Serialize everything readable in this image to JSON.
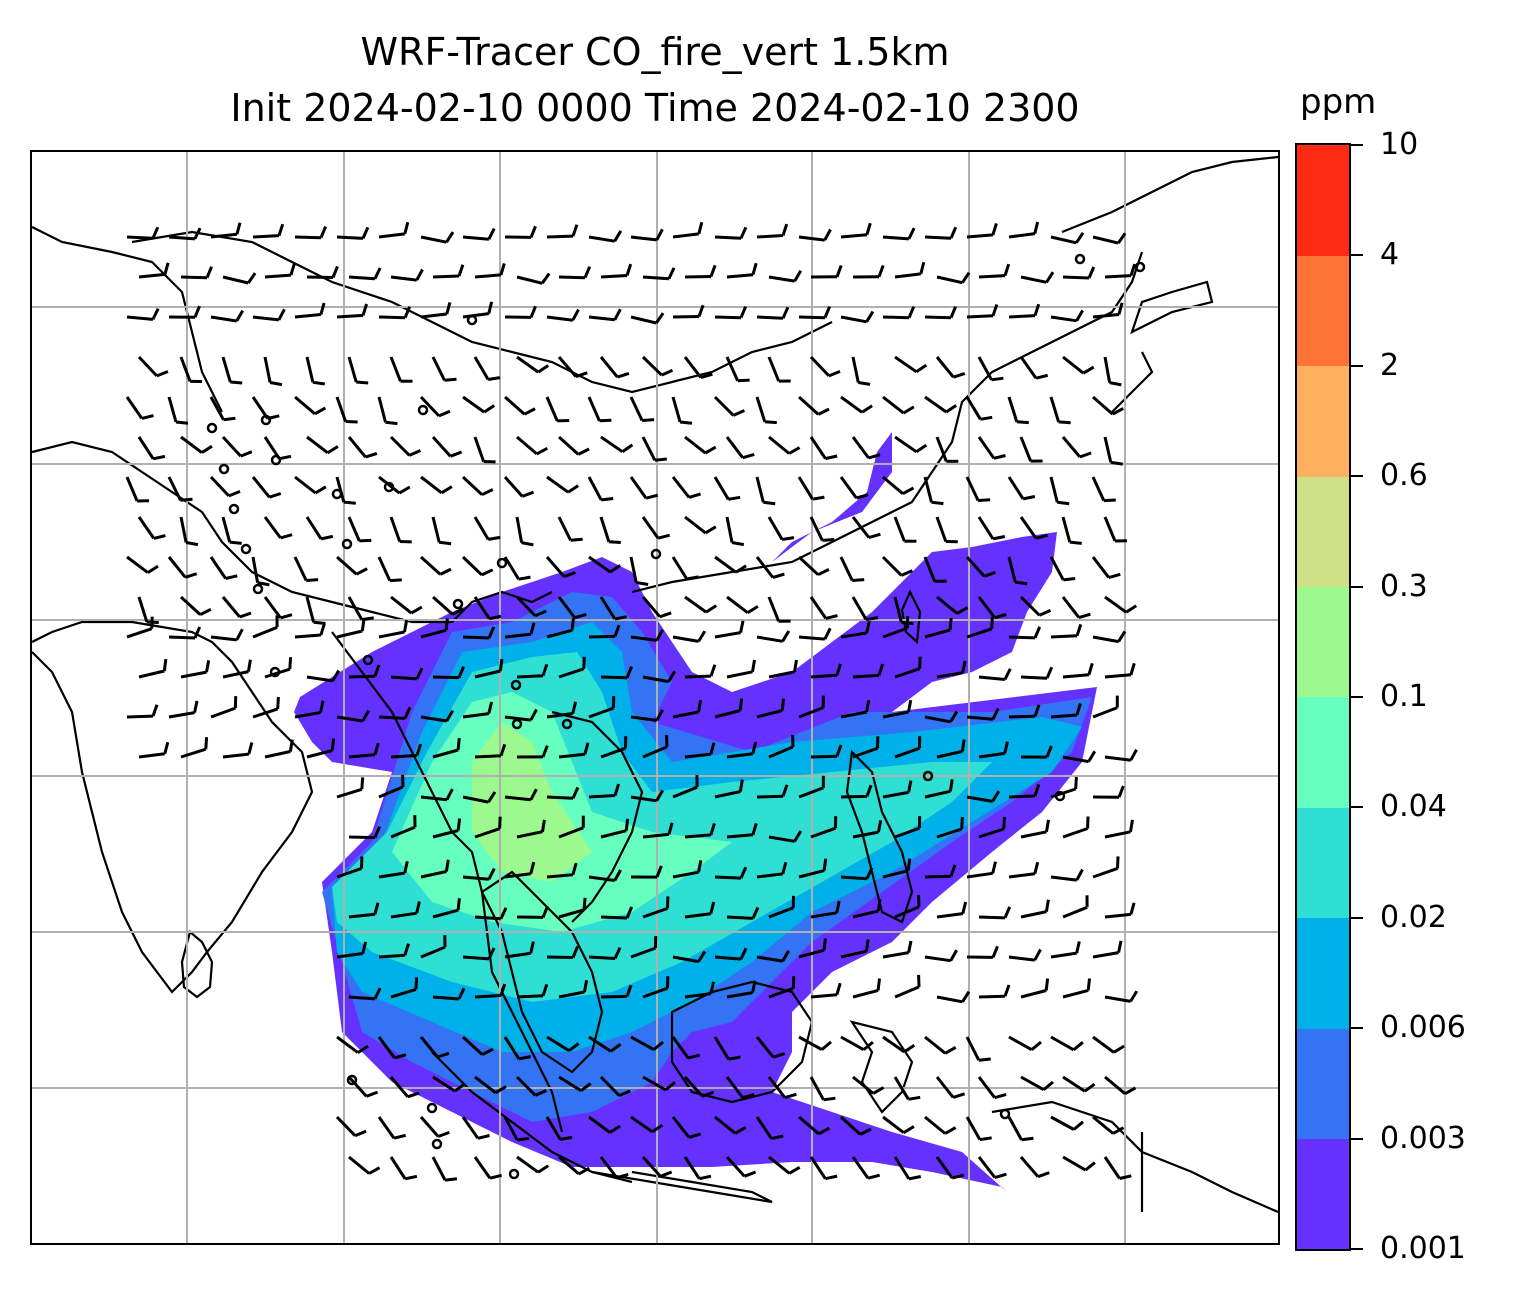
{
  "title": {
    "line1": "WRF-Tracer CO_fire_vert 1.5km",
    "line2": "Init 2024-02-10 0000 Time 2024-02-10 2300"
  },
  "colorbar": {
    "unit": "ppm",
    "levels": [
      "0.001",
      "0.003",
      "0.006",
      "0.02",
      "0.04",
      "0.1",
      "0.3",
      "0.6",
      "2",
      "4",
      "10"
    ],
    "colors": [
      "#6431ff",
      "#3374f5",
      "#00b0e8",
      "#2fdfd4",
      "#66ffc0",
      "#9cf98e",
      "#cfe087",
      "#ffb15f",
      "#ff7339",
      "#ff2a14"
    ]
  },
  "map": {
    "gridlines": true,
    "features": [
      "coastlines",
      "country-borders",
      "wind-barbs",
      "calm-wind-circles",
      "CO-tracer-shading"
    ]
  }
}
